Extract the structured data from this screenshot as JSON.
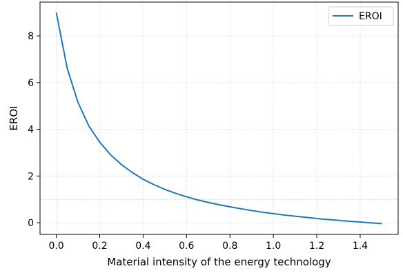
{
  "chart_data": {
    "type": "line",
    "title": "",
    "xlabel": "Material intensity of the energy technology",
    "ylabel": "EROI",
    "xlim": [
      -0.075,
      1.575
    ],
    "ylim": [
      -0.5,
      9.45
    ],
    "xticks": [
      0.0,
      0.2,
      0.4,
      0.6,
      0.8,
      1.0,
      1.2,
      1.4
    ],
    "xtick_labels": [
      "0.0",
      "0.2",
      "0.4",
      "0.6",
      "0.8",
      "1.0",
      "1.2",
      "1.4"
    ],
    "yticks": [
      0,
      2,
      4,
      6,
      8
    ],
    "ytick_labels": [
      "0",
      "2",
      "4",
      "6",
      "8"
    ],
    "grid": true,
    "reference_line_y": 1,
    "legend_position": "top-right",
    "series": [
      {
        "name": "EROI",
        "color": "#1f77b4",
        "x": [
          0.0,
          0.05,
          0.1,
          0.15,
          0.2,
          0.25,
          0.3,
          0.35,
          0.4,
          0.45,
          0.5,
          0.55,
          0.6,
          0.65,
          0.7,
          0.75,
          0.8,
          0.85,
          0.9,
          0.95,
          1.0,
          1.05,
          1.1,
          1.15,
          1.2,
          1.25,
          1.3,
          1.35,
          1.4,
          1.45,
          1.5
        ],
        "y": [
          9.0,
          6.62,
          5.15,
          4.14,
          3.45,
          2.91,
          2.49,
          2.15,
          1.86,
          1.63,
          1.43,
          1.26,
          1.11,
          0.98,
          0.87,
          0.77,
          0.68,
          0.6,
          0.52,
          0.45,
          0.39,
          0.33,
          0.28,
          0.23,
          0.18,
          0.14,
          0.1,
          0.06,
          0.03,
          -0.01,
          -0.04
        ]
      }
    ]
  }
}
